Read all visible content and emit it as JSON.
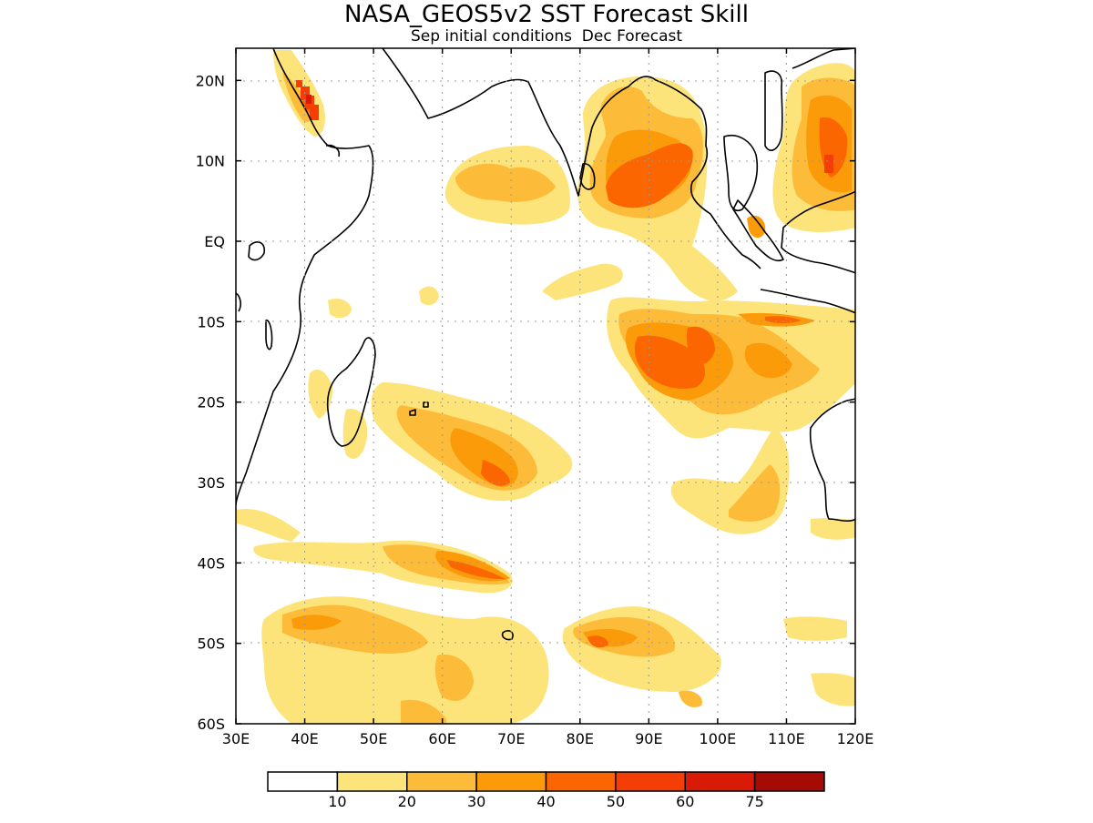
{
  "map": {
    "title": "NASA_GEOS5v2 SST Forecast Skill",
    "subtitle": "Sep initial conditions  Dec Forecast",
    "lon_labels": [
      "30E",
      "40E",
      "50E",
      "60E",
      "70E",
      "80E",
      "90E",
      "100E",
      "110E",
      "120E"
    ],
    "lat_labels": [
      "20N",
      "10N",
      "EQ",
      "10S",
      "20S",
      "30S",
      "40S",
      "50S",
      "60S"
    ],
    "lon_range": [
      30,
      120
    ],
    "lat_range": [
      -60,
      24
    ],
    "grid": true,
    "region": "Indian Ocean"
  },
  "legend": {
    "labels": [
      "10",
      "20",
      "30",
      "40",
      "50",
      "60",
      "75"
    ],
    "colors": [
      "#ffffff",
      "#fde47a",
      "#fdbb3a",
      "#fc9b0a",
      "#fb6600",
      "#f53e05",
      "#d81a06",
      "#a50a05"
    ]
  }
}
